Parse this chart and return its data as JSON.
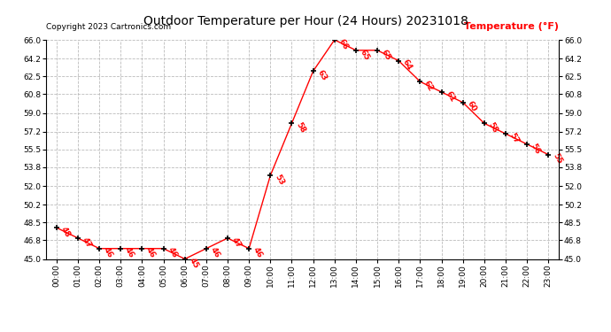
{
  "title": "Outdoor Temperature per Hour (24 Hours) 20231018",
  "copyright": "Copyright 2023 Cartronics.com",
  "legend_label": "Temperature (°F)",
  "hours": [
    0,
    1,
    2,
    3,
    4,
    5,
    6,
    7,
    8,
    9,
    10,
    11,
    12,
    13,
    14,
    15,
    16,
    17,
    18,
    19,
    20,
    21,
    22,
    23
  ],
  "temps": [
    48,
    47,
    46,
    46,
    46,
    46,
    45,
    46,
    47,
    46,
    53,
    58,
    63,
    66,
    65,
    65,
    64,
    62,
    61,
    60,
    58,
    57,
    56,
    55
  ],
  "x_labels": [
    "00:00",
    "01:00",
    "02:00",
    "03:00",
    "04:00",
    "05:00",
    "06:00",
    "07:00",
    "08:00",
    "09:00",
    "10:00",
    "11:00",
    "12:00",
    "13:00",
    "14:00",
    "15:00",
    "16:00",
    "17:00",
    "18:00",
    "19:00",
    "20:00",
    "21:00",
    "22:00",
    "23:00"
  ],
  "y_ticks": [
    45.0,
    46.8,
    48.5,
    50.2,
    52.0,
    53.8,
    55.5,
    57.2,
    59.0,
    60.8,
    62.5,
    64.2,
    66.0
  ],
  "ylim": [
    45.0,
    66.0
  ],
  "line_color": "red",
  "marker_color": "black",
  "label_color": "red",
  "title_color": "black",
  "copyright_color": "black",
  "legend_color": "red",
  "bg_color": "white",
  "grid_color": "#bbbbbb",
  "title_fontsize": 10,
  "copyright_fontsize": 6.5,
  "legend_fontsize": 8,
  "label_fontsize": 6.5,
  "tick_fontsize": 6.5
}
